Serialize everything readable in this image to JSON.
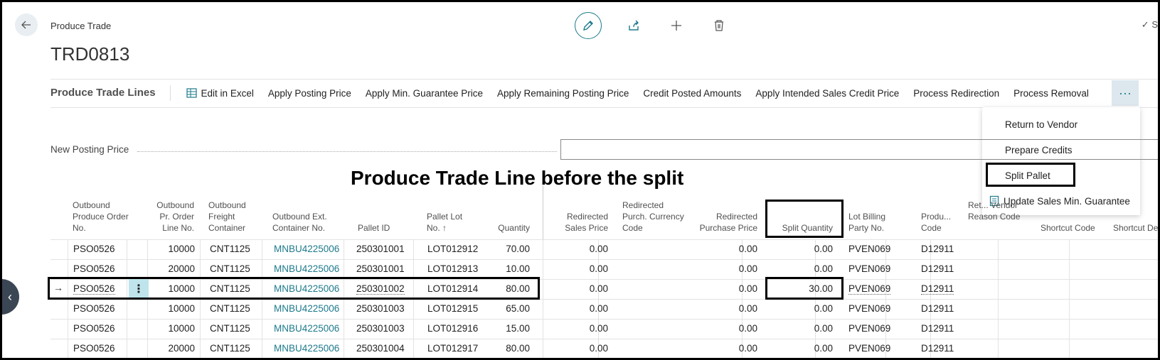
{
  "header": {
    "caption": "Produce Trade",
    "title": "TRD0813",
    "saved_partial": "S"
  },
  "toolbar": {
    "title": "Produce Trade Lines",
    "actions": [
      "Edit in Excel",
      "Apply Posting Price",
      "Apply Min. Guarantee Price",
      "Apply Remaining Posting Price",
      "Credit Posted Amounts",
      "Apply Intended Sales Credit Price",
      "Process Redirection",
      "Process Removal"
    ],
    "more": "···"
  },
  "dropdown": {
    "items": [
      "Return to Vendor",
      "Prepare Credits",
      "Split Pallet",
      "Update Sales Min. Guarantee"
    ]
  },
  "fields": {
    "new_posting_price_label": "New Posting Price",
    "new_posting_price_value": ""
  },
  "annotation": "Produce Trade Line before the split",
  "table": {
    "headers": [
      "Outbound Produce Order No.",
      "Outbound Pr. Order Line No.",
      "Outbound Freight Container",
      "Outbound Ext. Container No.",
      "Pallet ID",
      "Pallet Lot No. ↑",
      "Quantity",
      "Redirected Sales Price",
      "Redirected Purch. Currency Code",
      "Redirected Purchase Price",
      "Split Quantity",
      "Lot Billing Party No.",
      "Produ... Code",
      "Ret... Vendor Reason Code",
      "Shortcut Code",
      "Shortcut Des"
    ],
    "rows": [
      [
        "PSO0526",
        "10000",
        "CNT1125",
        "MNBU4225006",
        "250301001",
        "LOT012912",
        "70.00",
        "0.00",
        "",
        "0.00",
        "0.00",
        "PVEN069",
        "D12911"
      ],
      [
        "PSO0526",
        "20000",
        "CNT1125",
        "MNBU4225006",
        "250301001",
        "LOT012913",
        "10.00",
        "0.00",
        "",
        "0.00",
        "0.00",
        "PVEN069",
        "D12911"
      ],
      [
        "PSO0526",
        "10000",
        "CNT1125",
        "MNBU4225006",
        "250301002",
        "LOT012914",
        "80.00",
        "0.00",
        "",
        "0.00",
        "30.00",
        "PVEN069",
        "D12911"
      ],
      [
        "PSO0526",
        "10000",
        "CNT1125",
        "MNBU4225006",
        "250301003",
        "LOT012915",
        "65.00",
        "0.00",
        "",
        "0.00",
        "0.00",
        "PVEN069",
        "D12911"
      ],
      [
        "PSO0526",
        "10000",
        "CNT1125",
        "MNBU4225006",
        "250301003",
        "LOT012916",
        "15.00",
        "0.00",
        "",
        "0.00",
        "0.00",
        "PVEN069",
        "D12911"
      ],
      [
        "PSO0526",
        "20000",
        "CNT1125",
        "MNBU4225006",
        "250301004",
        "LOT012917",
        "80.00",
        "0.00",
        "",
        "0.00",
        "0.00",
        "PVEN069",
        "D12911"
      ]
    ],
    "selected_row_index": 2,
    "row_arrow": "→",
    "row_menu": "⋮"
  },
  "colors": {
    "accent": "#1e7a8c",
    "more_bg": "#dde8ee",
    "selected_cell_bg": "#bfe4ec",
    "annotation_border": "#000000"
  }
}
